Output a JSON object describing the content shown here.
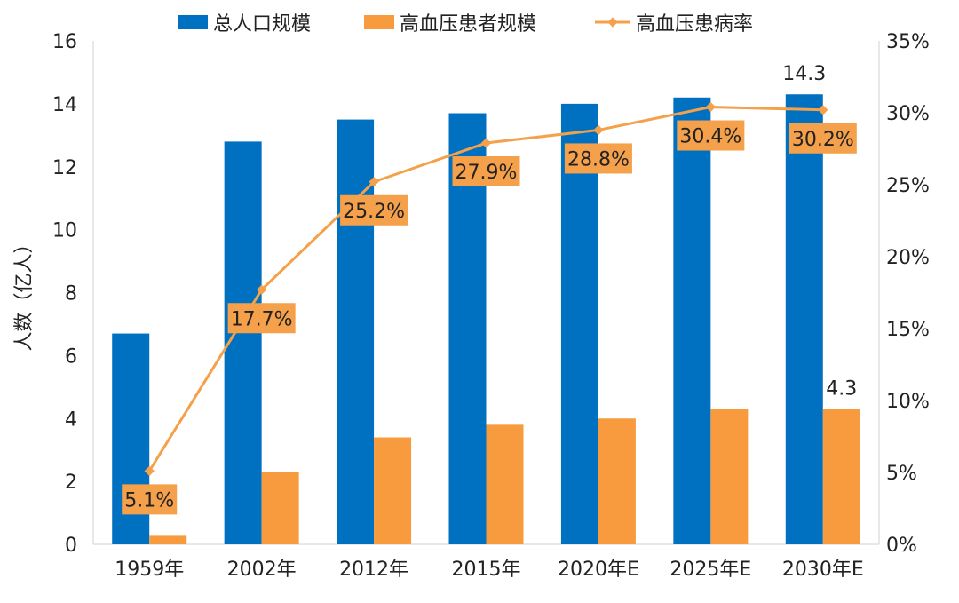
{
  "chart_data": {
    "type": "bar",
    "categories": [
      "1959年",
      "2002年",
      "2012年",
      "2015年",
      "2020年E",
      "2025年E",
      "2030年E"
    ],
    "ylabel": "人数（亿人）",
    "ylim": [
      0,
      16
    ],
    "yticks": [
      "0",
      "2",
      "4",
      "6",
      "8",
      "10",
      "12",
      "14",
      "16"
    ],
    "y2lim": [
      0,
      35
    ],
    "y2ticks": [
      "0%",
      "5%",
      "10%",
      "15%",
      "20%",
      "25%",
      "30%",
      "35%"
    ],
    "grid": false,
    "legend_position": "top",
    "series": [
      {
        "name": "总人口规模",
        "type": "bar",
        "axis": "left",
        "color": "#0070C0",
        "values": [
          6.7,
          12.8,
          13.5,
          13.7,
          14.0,
          14.2,
          14.3
        ]
      },
      {
        "name": "高血压患者规模",
        "type": "bar",
        "axis": "left",
        "color": "#F79B3E",
        "values": [
          0.3,
          2.3,
          3.4,
          3.8,
          4.0,
          4.3,
          4.3
        ]
      },
      {
        "name": "高血压患病率",
        "type": "line",
        "axis": "right",
        "color": "#F5A04A",
        "values": [
          5.1,
          17.7,
          25.2,
          27.9,
          28.8,
          30.4,
          30.2
        ],
        "labels": [
          "5.1%",
          "17.7%",
          "25.2%",
          "27.9%",
          "28.8%",
          "30.4%",
          "30.2%"
        ]
      }
    ],
    "annotations": [
      {
        "series": 0,
        "index": 6,
        "text": "14.3"
      },
      {
        "series": 1,
        "index": 6,
        "text": "4.3"
      }
    ]
  }
}
